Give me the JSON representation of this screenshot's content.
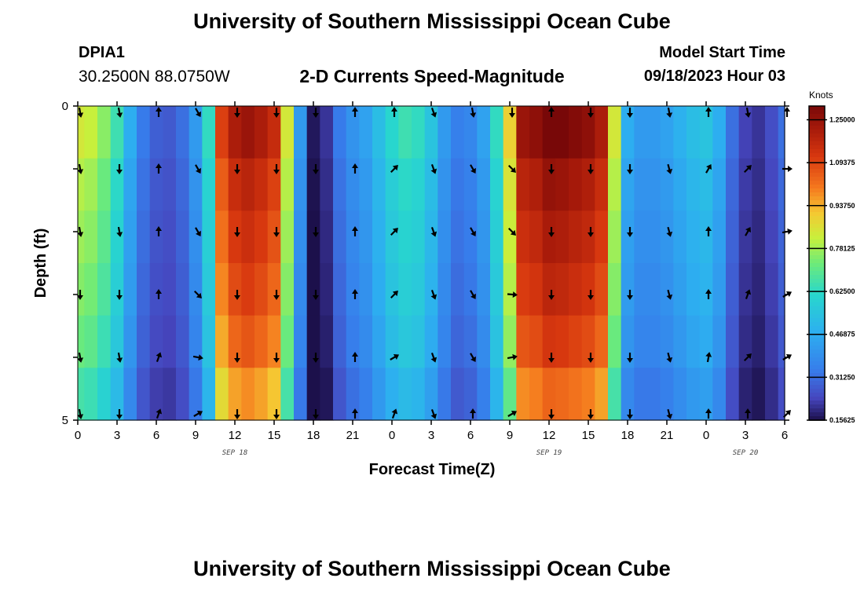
{
  "page": {
    "title": "University of Southern Mississippi Ocean Cube",
    "station": "DPIA1",
    "coords": "30.2500N  88.0750W",
    "subtitle": "2-D Currents Speed-Magnitude",
    "model_start_label": "Model Start Time",
    "model_start_value": "09/18/2023 Hour 03",
    "footer_title": "University of Southern Mississippi Ocean Cube"
  },
  "chart_data": {
    "type": "heatmap",
    "title": "2-D Currents Speed-Magnitude",
    "xlabel": "Forecast Time(Z)",
    "ylabel": "Depth (ft)",
    "colorbar_label": "Knots",
    "x_ticks": [
      "0",
      "3",
      "6",
      "9",
      "12",
      "15",
      "18",
      "21",
      "0",
      "3",
      "6",
      "9",
      "12",
      "15",
      "18",
      "21",
      "0",
      "3",
      "6"
    ],
    "date_labels": [
      {
        "text": "SEP 18",
        "x_hours": 12
      },
      {
        "text": "SEP 19",
        "x_hours": 36
      },
      {
        "text": "SEP 20",
        "x_hours": 51
      }
    ],
    "x_range_hours": [
      0,
      54
    ],
    "y_ticks": [
      "0",
      "",
      "",
      "",
      "",
      "5"
    ],
    "y_range_ft": [
      0,
      5
    ],
    "color_range": [
      0.15625,
      1.3
    ],
    "colorbar_ticks": [
      "1.25000",
      "1.09375",
      "0.93750",
      "0.78125",
      "0.62500",
      "0.46875",
      "0.31250",
      "0.15625"
    ],
    "colorbar_tick_values": [
      1.25,
      1.09375,
      0.9375,
      0.78125,
      0.625,
      0.46875,
      0.3125,
      0.15625
    ],
    "speed_profile": {
      "hours": [
        0,
        1,
        2,
        3,
        4,
        5,
        6,
        7,
        8,
        9,
        10,
        11,
        12,
        13,
        14,
        15,
        16,
        17,
        18,
        19,
        20,
        21,
        22,
        23,
        24,
        25,
        26,
        27,
        28,
        29,
        30,
        31,
        32,
        33,
        34,
        35,
        36,
        37,
        38,
        39,
        40,
        41,
        42,
        43,
        44,
        45,
        46,
        47,
        48,
        49,
        50,
        51,
        52,
        53,
        54
      ],
      "speed": [
        0.8,
        0.78,
        0.72,
        0.62,
        0.45,
        0.32,
        0.27,
        0.26,
        0.3,
        0.4,
        0.6,
        1.05,
        1.15,
        1.18,
        1.15,
        1.1,
        0.8,
        0.4,
        0.16,
        0.2,
        0.32,
        0.38,
        0.42,
        0.5,
        0.58,
        0.62,
        0.6,
        0.52,
        0.4,
        0.33,
        0.35,
        0.42,
        0.6,
        0.85,
        1.18,
        1.2,
        1.25,
        1.24,
        1.22,
        1.2,
        1.15,
        0.8,
        0.45,
        0.4,
        0.4,
        0.42,
        0.46,
        0.5,
        0.52,
        0.45,
        0.3,
        0.22,
        0.2,
        0.24,
        0.3
      ]
    },
    "depth_rows_factor": [
      1.05,
      1.0,
      0.97,
      0.94,
      0.9,
      0.83
    ],
    "arrow_hours": [
      0,
      3,
      6,
      9,
      12,
      15,
      18,
      21,
      24,
      27,
      30,
      33,
      36,
      39,
      42,
      45,
      48,
      51,
      54
    ],
    "arrow_depth_ft": [
      0,
      1,
      2,
      3,
      4,
      5
    ],
    "arrow_directions_deg": [
      [
        170,
        170,
        0,
        150,
        180,
        180,
        180,
        0,
        0,
        160,
        170,
        180,
        0,
        180,
        180,
        170,
        0,
        170,
        0
      ],
      [
        170,
        180,
        0,
        150,
        180,
        180,
        180,
        0,
        45,
        160,
        150,
        135,
        180,
        180,
        180,
        165,
        30,
        45,
        90
      ],
      [
        170,
        170,
        0,
        150,
        180,
        180,
        180,
        0,
        45,
        160,
        150,
        135,
        180,
        180,
        180,
        165,
        0,
        30,
        80
      ],
      [
        180,
        180,
        0,
        135,
        180,
        180,
        180,
        0,
        45,
        160,
        150,
        95,
        180,
        180,
        180,
        165,
        0,
        20,
        60
      ],
      [
        170,
        170,
        20,
        100,
        180,
        180,
        180,
        0,
        60,
        160,
        150,
        80,
        180,
        180,
        180,
        165,
        10,
        45,
        60
      ],
      [
        170,
        180,
        20,
        60,
        180,
        180,
        180,
        0,
        20,
        160,
        0,
        60,
        180,
        180,
        180,
        165,
        0,
        0,
        45
      ]
    ]
  }
}
